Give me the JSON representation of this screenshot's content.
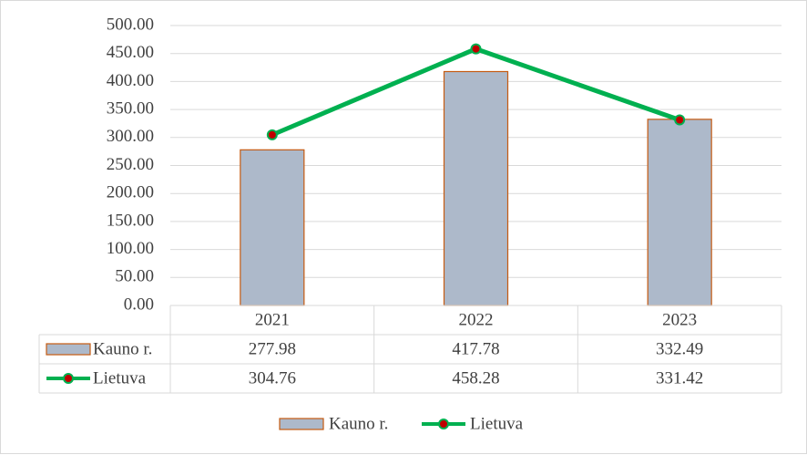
{
  "chart_data": {
    "type": "bar",
    "categories": [
      "2021",
      "2022",
      "2023"
    ],
    "series": [
      {
        "name": "Kauno r.",
        "type": "bar",
        "values": [
          277.98,
          417.78,
          332.49
        ],
        "display": [
          "277.98",
          "417.78",
          "332.49"
        ]
      },
      {
        "name": "Lietuva",
        "type": "line",
        "values": [
          304.76,
          458.28,
          331.42
        ],
        "display": [
          "304.76",
          "458.28",
          "331.42"
        ]
      }
    ],
    "ylim": [
      0,
      500
    ],
    "yticks": [
      "0.00",
      "50.00",
      "100.00",
      "150.00",
      "200.00",
      "250.00",
      "300.00",
      "350.00",
      "400.00",
      "450.00",
      "500.00"
    ],
    "grid": true,
    "data_table": true,
    "legend_position": "bottom",
    "colors": {
      "bar_fill": "#adb9ca",
      "bar_border": "#c55a11",
      "line": "#00b050",
      "marker_fill": "#c00000",
      "grid": "#d9d9d9",
      "text": "#404040"
    }
  }
}
